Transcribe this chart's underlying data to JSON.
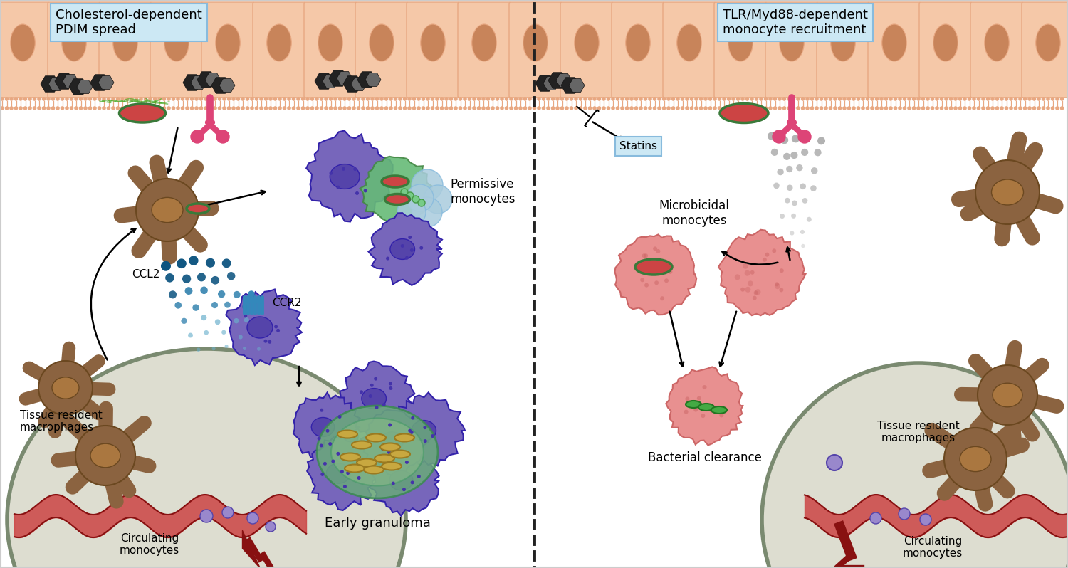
{
  "background_color": "#ffffff",
  "epithelium_color": "#f5c8a8",
  "epithelium_outline": "#e8a882",
  "nucleus_color": "#c8845a",
  "membrane_head_color": "#e8a882",
  "bacteria_fill": "#cc4444",
  "bacteria_fill2": "#d45555",
  "bacteria_outline": "#3a7a3a",
  "tlr_color": "#dd4477",
  "cholesterol_dark": "#333333",
  "cholesterol_gray": "#888888",
  "purple_body": "#7766bb",
  "purple_nucleus": "#5544aa",
  "purple_dark": "#3322aa",
  "purple_dot": "#4433aa",
  "green_body": "#66bb77",
  "green_light": "#99ddaa",
  "blue_ball": "#aaccdd",
  "blue_ball2": "#88bbdd",
  "brown_body": "#8B6340",
  "brown_dark": "#6B4820",
  "brown_nucleus": "#aa7740",
  "ccl2_dark": "#0d5480",
  "ccl2_mid": "#2278a8",
  "ccl2_light": "#6ab0cc",
  "ccr2_color": "#3388bb",
  "gran_center": "#6aaa7a",
  "gran_bact_fill": "#c8a840",
  "gran_bact_outline": "#9a7a20",
  "vessel_fill": "#cc4444",
  "vessel_dark": "#881111",
  "tissue_bg": "#ddddd0",
  "tissue_border": "#7a8a70",
  "pink_fill": "#e89090",
  "pink_edge": "#cc6666",
  "green_bact_fill": "#44aa44",
  "green_bact_outline": "#227722",
  "gray_dot": "#aaaaaa",
  "dash_color": "#222222",
  "monocyte_purple": "#9988cc",
  "monocyte_purple_edge": "#5544aa",
  "left_label": "Cholesterol-dependent\nPDIM spread",
  "right_label": "TLR/Myd88-dependent\nmonocyte recruitment",
  "statins_label": "Statins",
  "ccl2_label": "CCL2",
  "ccr2_label": "CCR2",
  "permissive_label": "Permissive\nmonocytes",
  "tissue_res_label": "Tissue resident\nmacrophages",
  "circulating_label": "Circulating\nmonocytes",
  "granuloma_label": "Early granuloma",
  "microbicidal_label": "Microbicidal\nmonocytes",
  "clearance_label": "Bacterial clearance",
  "tissue_res_r_label": "Tissue resident\nmacrophages",
  "circulating_r_label": "Circulating\nmonocytes"
}
